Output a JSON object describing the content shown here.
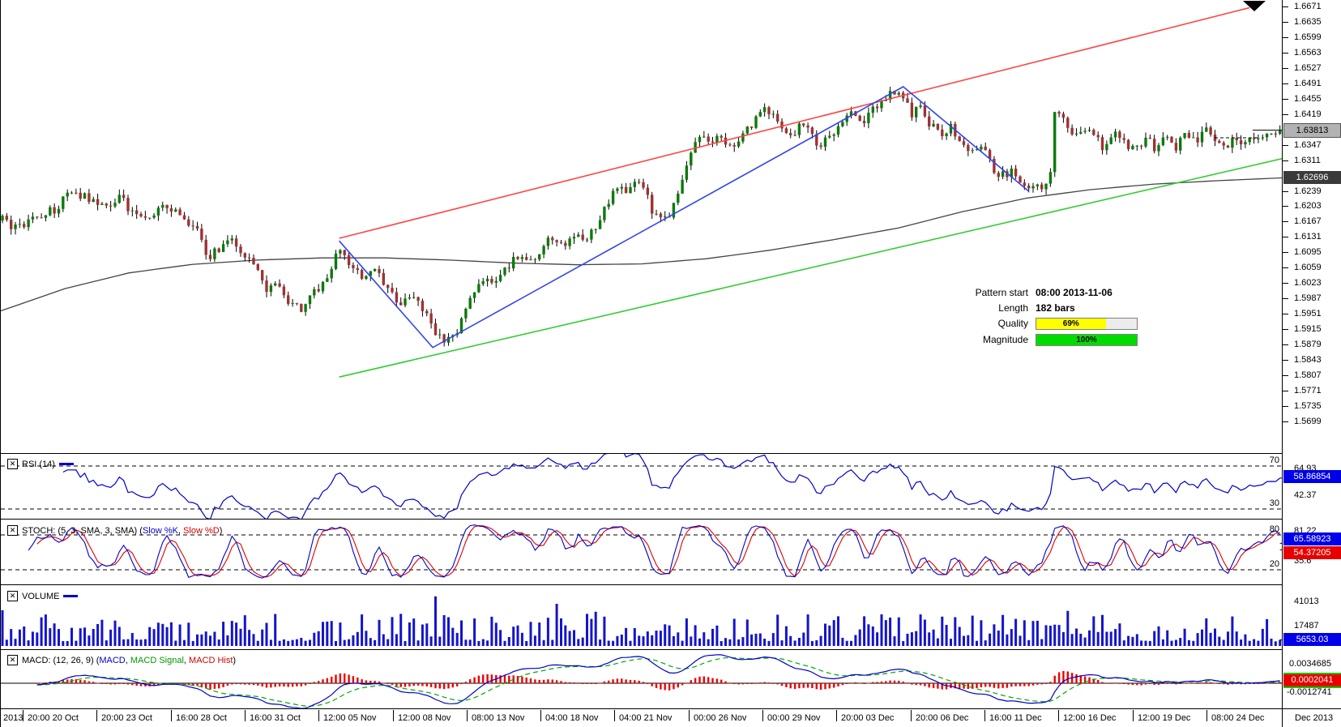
{
  "main_chart": {
    "price_box": "1.63813",
    "sma_box": "1.62696",
    "pattern_info": {
      "start_label": "Pattern start",
      "start_value": "08:00 2013-11-06",
      "length_label": "Length",
      "length_value": "182 bars",
      "quality_label": "Quality",
      "quality_value": "69%",
      "magnitude_label": "Magnitude",
      "magnitude_value": "100%"
    }
  },
  "panels": {
    "rsi": {
      "title": "RSI (14)",
      "value": "58.86854",
      "hidden_label": "64.93",
      "mid_label": "42.37",
      "level_top": "70",
      "level_bottom": "30"
    },
    "stoch": {
      "title_prefix": "STOCH: (5, 3, SMA, 3, SMA) (",
      "k_label": "Slow %K",
      "separator": ", ",
      "d_label": "Slow %D",
      "title_suffix": ")",
      "k_value": "65.58923",
      "d_value": "54.37205",
      "hidden_label": "81.22",
      "mid_label": "35.6",
      "level_top": "80",
      "level_bottom": "20"
    },
    "volume": {
      "title": "VOLUME",
      "value": "5653.03",
      "tick_top": "41013",
      "tick_mid": "17487"
    },
    "macd": {
      "title_prefix": "MACD: (12, 26, 9) (",
      "macd_label": "MACD",
      "sep1": ", ",
      "signal_label": "MACD Signal",
      "sep2": ", ",
      "hist_label": "MACD Hist",
      "title_suffix": ")",
      "value": "0.0002041",
      "tick_top": "0.0034685",
      "tick_bottom": "-0.0012741"
    }
  },
  "time_axis": {
    "labels": [
      "2013",
      "20:00 20 Oct",
      "20:00 23 Oct",
      "16:00 28 Oct",
      "16:00 31 Oct",
      "12:00 05 Nov",
      "12:00 08 Nov",
      "08:00 13 Nov",
      "04:00 18 Nov",
      "04:00 21 Nov",
      "00:00 26 Nov",
      "00:00 29 Nov",
      "20:00 03 Dec",
      "20:00 06 Dec",
      "16:00 11 Dec",
      "12:00 16 Dec",
      "12:00 19 Dec",
      "08:00 24 Dec"
    ],
    "right_label": "Dec 2013"
  },
  "chart_data": {
    "type": "candlestick",
    "bars": 296,
    "current_price": 1.63813,
    "sma_value": 1.62696,
    "y_axis_ticks": [
      1.6671,
      1.6635,
      1.6599,
      1.6563,
      1.6527,
      1.6491,
      1.6455,
      1.6419,
      1.6347,
      1.6311,
      1.6239,
      1.6203,
      1.6167,
      1.6131,
      1.6095,
      1.6059,
      1.6023,
      1.5987,
      1.5951,
      1.5915,
      1.5879,
      1.5843,
      1.5807,
      1.5771,
      1.5735,
      1.5699
    ],
    "x_tick_labels": [
      "2013",
      "20:00 20 Oct",
      "20:00 23 Oct",
      "16:00 28 Oct",
      "16:00 31 Oct",
      "12:00 05 Nov",
      "12:00 08 Nov",
      "08:00 13 Nov",
      "04:00 18 Nov",
      "04:00 21 Nov",
      "00:00 26 Nov",
      "00:00 29 Nov",
      "20:00 03 Dec",
      "20:00 06 Dec",
      "16:00 11 Dec",
      "12:00 16 Dec",
      "12:00 19 Dec",
      "08:00 24 Dec",
      "Dec 2013"
    ],
    "pattern": {
      "start": "08:00 2013-11-06",
      "length_bars": 182,
      "quality_pct": 69,
      "magnitude_pct": 100
    },
    "price_waypoints": [
      [
        0.0,
        1.617
      ],
      [
        0.012,
        1.615
      ],
      [
        0.025,
        1.6175
      ],
      [
        0.04,
        1.6195
      ],
      [
        0.055,
        1.6238
      ],
      [
        0.068,
        1.622
      ],
      [
        0.08,
        1.62
      ],
      [
        0.092,
        1.6225
      ],
      [
        0.105,
        1.6178
      ],
      [
        0.118,
        1.6185
      ],
      [
        0.13,
        1.6208
      ],
      [
        0.142,
        1.617
      ],
      [
        0.152,
        1.6148
      ],
      [
        0.16,
        1.608
      ],
      [
        0.17,
        1.6108
      ],
      [
        0.18,
        1.6128
      ],
      [
        0.19,
        1.6085
      ],
      [
        0.2,
        1.6048
      ],
      [
        0.208,
        1.6
      ],
      [
        0.216,
        1.6028
      ],
      [
        0.225,
        1.5978
      ],
      [
        0.235,
        1.5962
      ],
      [
        0.245,
        1.6002
      ],
      [
        0.255,
        1.6048
      ],
      [
        0.264,
        1.6105
      ],
      [
        0.272,
        1.6062
      ],
      [
        0.282,
        1.6035
      ],
      [
        0.292,
        1.6052
      ],
      [
        0.302,
        1.6
      ],
      [
        0.312,
        1.5978
      ],
      [
        0.322,
        1.5995
      ],
      [
        0.332,
        1.5942
      ],
      [
        0.342,
        1.5898
      ],
      [
        0.352,
        1.5888
      ],
      [
        0.36,
        1.5945
      ],
      [
        0.368,
        1.6
      ],
      [
        0.376,
        1.6032
      ],
      [
        0.385,
        1.6015
      ],
      [
        0.395,
        1.6062
      ],
      [
        0.405,
        1.609
      ],
      [
        0.413,
        1.6075
      ],
      [
        0.421,
        1.6098
      ],
      [
        0.43,
        1.6128
      ],
      [
        0.438,
        1.611
      ],
      [
        0.447,
        1.6138
      ],
      [
        0.455,
        1.612
      ],
      [
        0.463,
        1.615
      ],
      [
        0.472,
        1.6195
      ],
      [
        0.48,
        1.6245
      ],
      [
        0.49,
        1.6238
      ],
      [
        0.497,
        1.6262
      ],
      [
        0.503,
        1.624
      ],
      [
        0.509,
        1.6185
      ],
      [
        0.516,
        1.6165
      ],
      [
        0.524,
        1.6195
      ],
      [
        0.531,
        1.6252
      ],
      [
        0.539,
        1.6335
      ],
      [
        0.547,
        1.6362
      ],
      [
        0.555,
        1.6348
      ],
      [
        0.563,
        1.6368
      ],
      [
        0.571,
        1.6332
      ],
      [
        0.579,
        1.6362
      ],
      [
        0.587,
        1.6398
      ],
      [
        0.593,
        1.6432
      ],
      [
        0.601,
        1.642
      ],
      [
        0.609,
        1.6388
      ],
      [
        0.617,
        1.6365
      ],
      [
        0.625,
        1.6398
      ],
      [
        0.633,
        1.6372
      ],
      [
        0.641,
        1.6342
      ],
      [
        0.649,
        1.6378
      ],
      [
        0.657,
        1.6392
      ],
      [
        0.665,
        1.6422
      ],
      [
        0.673,
        1.6398
      ],
      [
        0.681,
        1.6432
      ],
      [
        0.691,
        1.6458
      ],
      [
        0.7,
        1.6472
      ],
      [
        0.706,
        1.6448
      ],
      [
        0.712,
        1.642
      ],
      [
        0.718,
        1.6438
      ],
      [
        0.726,
        1.6395
      ],
      [
        0.734,
        1.6372
      ],
      [
        0.742,
        1.6388
      ],
      [
        0.75,
        1.6355
      ],
      [
        0.758,
        1.6322
      ],
      [
        0.766,
        1.6342
      ],
      [
        0.774,
        1.63
      ],
      [
        0.782,
        1.6272
      ],
      [
        0.79,
        1.6288
      ],
      [
        0.798,
        1.6255
      ],
      [
        0.804,
        1.624
      ],
      [
        0.81,
        1.6262
      ],
      [
        0.816,
        1.6248
      ],
      [
        0.82,
        1.6278
      ],
      [
        0.824,
        1.6428
      ],
      [
        0.83,
        1.6402
      ],
      [
        0.838,
        1.6362
      ],
      [
        0.846,
        1.6392
      ],
      [
        0.854,
        1.6365
      ],
      [
        0.862,
        1.6342
      ],
      [
        0.87,
        1.6372
      ],
      [
        0.878,
        1.6355
      ],
      [
        0.886,
        1.6332
      ],
      [
        0.894,
        1.6362
      ],
      [
        0.902,
        1.6342
      ],
      [
        0.91,
        1.6362
      ],
      [
        0.918,
        1.6342
      ],
      [
        0.926,
        1.6372
      ],
      [
        0.934,
        1.6355
      ],
      [
        0.942,
        1.6382
      ],
      [
        0.95,
        1.6362
      ],
      [
        0.958,
        1.6342
      ],
      [
        0.966,
        1.6362
      ],
      [
        0.974,
        1.6352
      ],
      [
        0.982,
        1.6372
      ],
      [
        0.99,
        1.6368
      ],
      [
        1.0,
        1.63813
      ]
    ],
    "sma_waypoints": [
      [
        0,
        1.5958
      ],
      [
        0.05,
        1.601
      ],
      [
        0.1,
        1.6047
      ],
      [
        0.15,
        1.6067
      ],
      [
        0.2,
        1.6077
      ],
      [
        0.25,
        1.6082
      ],
      [
        0.3,
        1.6082
      ],
      [
        0.35,
        1.6077
      ],
      [
        0.4,
        1.607
      ],
      [
        0.45,
        1.6066
      ],
      [
        0.5,
        1.6068
      ],
      [
        0.55,
        1.608
      ],
      [
        0.6,
        1.61
      ],
      [
        0.65,
        1.6125
      ],
      [
        0.7,
        1.6152
      ],
      [
        0.75,
        1.619
      ],
      [
        0.8,
        1.6222
      ],
      [
        0.85,
        1.6242
      ],
      [
        0.9,
        1.6255
      ],
      [
        0.95,
        1.6263
      ],
      [
        1.0,
        1.62696
      ]
    ],
    "trendline_red": [
      [
        0.264,
        1.6128
      ],
      [
        0.974,
        1.6668
      ]
    ],
    "trendline_green": [
      [
        0.264,
        1.5803
      ],
      [
        1.0,
        1.6315
      ]
    ],
    "pattern_zigzag": [
      [
        0.264,
        1.6122
      ],
      [
        0.337,
        1.5872
      ],
      [
        0.704,
        1.6483
      ],
      [
        0.802,
        1.6238
      ]
    ],
    "indicators": {
      "rsi": {
        "period": 14,
        "current": 58.86854,
        "levels": [
          70,
          30
        ],
        "axis_labels": [
          64.93,
          42.37
        ]
      },
      "stoch": {
        "params": [
          5,
          3,
          "SMA",
          3,
          "SMA"
        ],
        "current_k": 65.58923,
        "current_d": 54.37205,
        "levels": [
          80,
          20
        ],
        "axis_labels": [
          81.22,
          35.6
        ]
      },
      "volume": {
        "current": 5653.03,
        "axis_labels": [
          41013,
          17487
        ]
      },
      "macd": {
        "params": [
          12,
          26,
          9
        ],
        "current": 0.0002041,
        "axis_labels": [
          0.0034685,
          -0.0012741
        ]
      }
    },
    "colors": {
      "up": "#0b7a0b",
      "down": "#a03232",
      "sma": "#444444",
      "trend_red": "#ff4444",
      "trend_green": "#33cc33",
      "pattern_blue": "#3344ee",
      "rsi": "#0000cc",
      "stoch_k": "#0000cc",
      "stoch_d": "#dd0000",
      "volume": "#1414cc",
      "macd": "#0000cc",
      "macd_signal": "#00aa00",
      "macd_hist": "#ee0000",
      "price_box_bg": "#b2b2b2",
      "sma_box_bg": "#3a3a3a",
      "quality_fill": "#ffff00",
      "magnitude_fill": "#00dc00"
    }
  }
}
